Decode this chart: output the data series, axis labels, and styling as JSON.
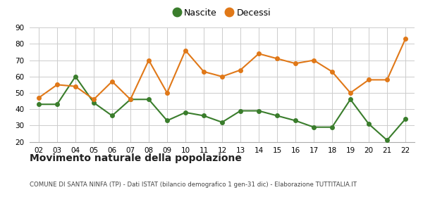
{
  "years": [
    "02",
    "03",
    "04",
    "05",
    "06",
    "07",
    "08",
    "09",
    "10",
    "11",
    "12",
    "13",
    "14",
    "15",
    "16",
    "17",
    "18",
    "19",
    "20",
    "21",
    "22"
  ],
  "nascite": [
    43,
    43,
    60,
    44,
    36,
    46,
    46,
    33,
    38,
    36,
    32,
    39,
    39,
    36,
    33,
    29,
    29,
    46,
    31,
    21,
    34
  ],
  "decessi": [
    47,
    55,
    54,
    46,
    57,
    46,
    70,
    50,
    76,
    63,
    60,
    64,
    74,
    71,
    68,
    70,
    63,
    50,
    58,
    58,
    83
  ],
  "nascite_color": "#3a7d2c",
  "decessi_color": "#e07818",
  "bg_color": "#ffffff",
  "grid_color": "#cccccc",
  "ylim": [
    20,
    90
  ],
  "yticks": [
    20,
    30,
    40,
    50,
    60,
    70,
    80,
    90
  ],
  "title": "Movimento naturale della popolazione",
  "subtitle": "COMUNE DI SANTA NINFA (TP) - Dati ISTAT (bilancio demografico 1 gen-31 dic) - Elaborazione TUTTITALIA.IT",
  "legend_nascite": "Nascite",
  "legend_decessi": "Decessi",
  "marker_size": 4,
  "line_width": 1.5
}
